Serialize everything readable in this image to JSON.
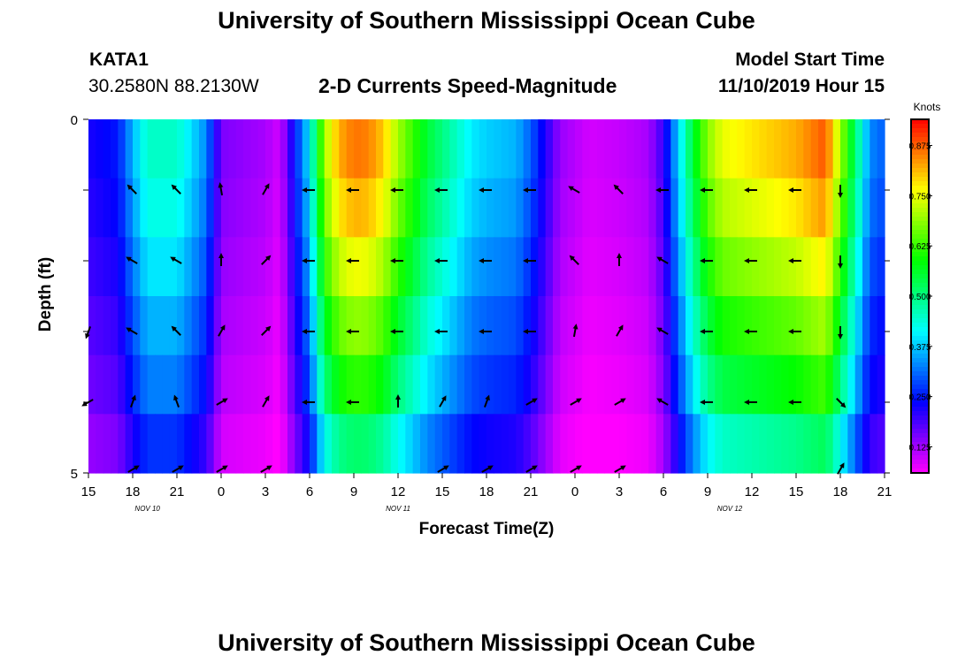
{
  "page": {
    "top_title": "University of Southern Mississippi Ocean Cube",
    "bottom_title": "University of Southern Mississippi Ocean Cube",
    "station_id": "KATA1",
    "coordinates": "30.2580N 88.2130W",
    "subtitle": "2-D Currents Speed-Magnitude",
    "model_start_label": "Model Start Time",
    "model_start_value": "11/10/2019 Hour 15"
  },
  "colors": {
    "background": "#ffffff",
    "colormap": [
      "#ff00ff",
      "#7f00ff",
      "#0000ff",
      "#007fff",
      "#00ffff",
      "#00ff7f",
      "#00ff00",
      "#7fff00",
      "#ffff00",
      "#ff7f00",
      "#ff0000"
    ],
    "arrow": "#000000"
  },
  "chart_data": {
    "type": "heatmap",
    "title": "2-D Currents Speed-Magnitude",
    "xlabel": "Forecast Time(Z)",
    "ylabel": "Depth (ft)",
    "x_unit": "forecast hour from model start",
    "x_range": [
      0,
      54
    ],
    "x_tick_hours": [
      0,
      3,
      6,
      9,
      12,
      15,
      18,
      21,
      24,
      27,
      30,
      33,
      36,
      39,
      42,
      45,
      48,
      51,
      54
    ],
    "x_tick_labels": [
      "15",
      "18",
      "21",
      "0",
      "3",
      "6",
      "9",
      "12",
      "15",
      "18",
      "21",
      "0",
      "3",
      "6",
      "9",
      "12",
      "15",
      "18",
      "21"
    ],
    "date_labels": [
      {
        "label": "NOV 10",
        "hour": 4
      },
      {
        "label": "NOV 11",
        "hour": 21
      },
      {
        "label": "NOV 12",
        "hour": 43.5
      }
    ],
    "y_range": [
      0,
      5
    ],
    "y_ticks": [
      0,
      1,
      2,
      3,
      4,
      5
    ],
    "y_tick_labels": [
      "0",
      "",
      "",
      "",
      "",
      "5"
    ],
    "depth_levels": [
      0.25,
      1,
      2,
      3,
      4,
      4.75
    ],
    "colorbar": {
      "label": "Knots",
      "min": 0.06,
      "max": 0.94,
      "ticks": [
        0.125,
        0.25,
        0.375,
        0.5,
        0.625,
        0.75,
        0.875
      ],
      "tick_labels": [
        "0.125",
        "0.250",
        "0.375",
        "0.500",
        "0.625",
        "0.750",
        "0.875"
      ]
    },
    "speed_profile_hours": [
      0,
      2,
      3,
      4,
      6,
      8,
      9,
      12,
      13,
      14,
      15,
      16,
      17,
      18,
      19,
      20,
      21,
      23,
      25,
      26,
      27,
      29,
      30,
      32,
      34,
      36,
      38,
      39,
      40,
      41,
      42,
      43,
      45,
      48,
      50,
      51,
      53,
      54
    ],
    "speed_profile_depth_factors": [
      1.0,
      0.95,
      0.88,
      0.8,
      0.72,
      0.6
    ],
    "speed_profile": [
      {
        "hour": 0,
        "speed": 0.22
      },
      {
        "hour": 2,
        "speed": 0.25
      },
      {
        "hour": 3,
        "speed": 0.36
      },
      {
        "hour": 4,
        "speed": 0.45
      },
      {
        "hour": 6,
        "speed": 0.45
      },
      {
        "hour": 8,
        "speed": 0.33
      },
      {
        "hour": 9,
        "speed": 0.15
      },
      {
        "hour": 12,
        "speed": 0.12
      },
      {
        "hour": 13,
        "speed": 0.09
      },
      {
        "hour": 14,
        "speed": 0.25
      },
      {
        "hour": 15,
        "speed": 0.4
      },
      {
        "hour": 16,
        "speed": 0.7
      },
      {
        "hour": 17,
        "speed": 0.82
      },
      {
        "hour": 18,
        "speed": 0.86
      },
      {
        "hour": 19,
        "speed": 0.85
      },
      {
        "hour": 20,
        "speed": 0.8
      },
      {
        "hour": 21,
        "speed": 0.7
      },
      {
        "hour": 23,
        "speed": 0.55
      },
      {
        "hour": 25,
        "speed": 0.45
      },
      {
        "hour": 26,
        "speed": 0.4
      },
      {
        "hour": 27,
        "speed": 0.38
      },
      {
        "hour": 29,
        "speed": 0.36
      },
      {
        "hour": 30,
        "speed": 0.3
      },
      {
        "hour": 32,
        "speed": 0.13
      },
      {
        "hour": 34,
        "speed": 0.09
      },
      {
        "hour": 36,
        "speed": 0.1
      },
      {
        "hour": 38,
        "speed": 0.12
      },
      {
        "hour": 39,
        "speed": 0.2
      },
      {
        "hour": 40,
        "speed": 0.38
      },
      {
        "hour": 41,
        "speed": 0.55
      },
      {
        "hour": 42,
        "speed": 0.68
      },
      {
        "hour": 43,
        "speed": 0.75
      },
      {
        "hour": 45,
        "speed": 0.78
      },
      {
        "hour": 48,
        "speed": 0.82
      },
      {
        "hour": 50,
        "speed": 0.88
      },
      {
        "hour": 51,
        "speed": 0.7
      },
      {
        "hour": 53,
        "speed": 0.33
      },
      {
        "hour": 54,
        "speed": 0.3
      }
    ],
    "arrows": [
      {
        "hour": 3,
        "depth": 1,
        "dir": 315
      },
      {
        "hour": 6,
        "depth": 1,
        "dir": 315
      },
      {
        "hour": 9,
        "depth": 1,
        "dir": 350
      },
      {
        "hour": 12,
        "depth": 1,
        "dir": 30
      },
      {
        "hour": 15,
        "depth": 1,
        "dir": 270
      },
      {
        "hour": 18,
        "depth": 1,
        "dir": 270
      },
      {
        "hour": 21,
        "depth": 1,
        "dir": 270
      },
      {
        "hour": 24,
        "depth": 1,
        "dir": 270
      },
      {
        "hour": 27,
        "depth": 1,
        "dir": 270
      },
      {
        "hour": 30,
        "depth": 1,
        "dir": 270
      },
      {
        "hour": 33,
        "depth": 1,
        "dir": 300
      },
      {
        "hour": 36,
        "depth": 1,
        "dir": 315
      },
      {
        "hour": 39,
        "depth": 1,
        "dir": 270
      },
      {
        "hour": 42,
        "depth": 1,
        "dir": 270
      },
      {
        "hour": 45,
        "depth": 1,
        "dir": 270
      },
      {
        "hour": 48,
        "depth": 1,
        "dir": 270
      },
      {
        "hour": 51,
        "depth": 1,
        "dir": 180
      },
      {
        "hour": 3,
        "depth": 2,
        "dir": 300
      },
      {
        "hour": 6,
        "depth": 2,
        "dir": 300
      },
      {
        "hour": 9,
        "depth": 2,
        "dir": 0
      },
      {
        "hour": 12,
        "depth": 2,
        "dir": 45
      },
      {
        "hour": 15,
        "depth": 2,
        "dir": 270
      },
      {
        "hour": 18,
        "depth": 2,
        "dir": 270
      },
      {
        "hour": 21,
        "depth": 2,
        "dir": 270
      },
      {
        "hour": 24,
        "depth": 2,
        "dir": 270
      },
      {
        "hour": 27,
        "depth": 2,
        "dir": 270
      },
      {
        "hour": 30,
        "depth": 2,
        "dir": 270
      },
      {
        "hour": 33,
        "depth": 2,
        "dir": 315
      },
      {
        "hour": 36,
        "depth": 2,
        "dir": 0
      },
      {
        "hour": 39,
        "depth": 2,
        "dir": 300
      },
      {
        "hour": 42,
        "depth": 2,
        "dir": 270
      },
      {
        "hour": 45,
        "depth": 2,
        "dir": 270
      },
      {
        "hour": 48,
        "depth": 2,
        "dir": 270
      },
      {
        "hour": 51,
        "depth": 2,
        "dir": 180
      },
      {
        "hour": 0,
        "depth": 3,
        "dir": 200
      },
      {
        "hour": 3,
        "depth": 3,
        "dir": 300
      },
      {
        "hour": 6,
        "depth": 3,
        "dir": 315
      },
      {
        "hour": 9,
        "depth": 3,
        "dir": 30
      },
      {
        "hour": 12,
        "depth": 3,
        "dir": 45
      },
      {
        "hour": 15,
        "depth": 3,
        "dir": 270
      },
      {
        "hour": 18,
        "depth": 3,
        "dir": 270
      },
      {
        "hour": 21,
        "depth": 3,
        "dir": 270
      },
      {
        "hour": 24,
        "depth": 3,
        "dir": 270
      },
      {
        "hour": 27,
        "depth": 3,
        "dir": 270
      },
      {
        "hour": 30,
        "depth": 3,
        "dir": 270
      },
      {
        "hour": 33,
        "depth": 3,
        "dir": 10
      },
      {
        "hour": 36,
        "depth": 3,
        "dir": 30
      },
      {
        "hour": 39,
        "depth": 3,
        "dir": 300
      },
      {
        "hour": 42,
        "depth": 3,
        "dir": 270
      },
      {
        "hour": 45,
        "depth": 3,
        "dir": 270
      },
      {
        "hour": 48,
        "depth": 3,
        "dir": 270
      },
      {
        "hour": 51,
        "depth": 3,
        "dir": 180
      },
      {
        "hour": 0,
        "depth": 4,
        "dir": 240
      },
      {
        "hour": 3,
        "depth": 4,
        "dir": 20
      },
      {
        "hour": 6,
        "depth": 4,
        "dir": 340
      },
      {
        "hour": 9,
        "depth": 4,
        "dir": 60
      },
      {
        "hour": 12,
        "depth": 4,
        "dir": 30
      },
      {
        "hour": 15,
        "depth": 4,
        "dir": 270
      },
      {
        "hour": 18,
        "depth": 4,
        "dir": 270
      },
      {
        "hour": 21,
        "depth": 4,
        "dir": 0
      },
      {
        "hour": 24,
        "depth": 4,
        "dir": 30
      },
      {
        "hour": 27,
        "depth": 4,
        "dir": 20
      },
      {
        "hour": 30,
        "depth": 4,
        "dir": 60
      },
      {
        "hour": 33,
        "depth": 4,
        "dir": 60
      },
      {
        "hour": 36,
        "depth": 4,
        "dir": 60
      },
      {
        "hour": 39,
        "depth": 4,
        "dir": 300
      },
      {
        "hour": 42,
        "depth": 4,
        "dir": 270
      },
      {
        "hour": 45,
        "depth": 4,
        "dir": 270
      },
      {
        "hour": 48,
        "depth": 4,
        "dir": 270
      },
      {
        "hour": 51,
        "depth": 4,
        "dir": 135
      },
      {
        "hour": 3,
        "depth": 4.95,
        "dir": 60
      },
      {
        "hour": 6,
        "depth": 4.95,
        "dir": 60
      },
      {
        "hour": 9,
        "depth": 4.95,
        "dir": 60
      },
      {
        "hour": 12,
        "depth": 4.95,
        "dir": 60
      },
      {
        "hour": 24,
        "depth": 4.95,
        "dir": 60
      },
      {
        "hour": 27,
        "depth": 4.95,
        "dir": 60
      },
      {
        "hour": 30,
        "depth": 4.95,
        "dir": 60
      },
      {
        "hour": 33,
        "depth": 4.95,
        "dir": 60
      },
      {
        "hour": 36,
        "depth": 4.95,
        "dir": 60
      },
      {
        "hour": 51,
        "depth": 4.95,
        "dir": 30
      }
    ]
  }
}
